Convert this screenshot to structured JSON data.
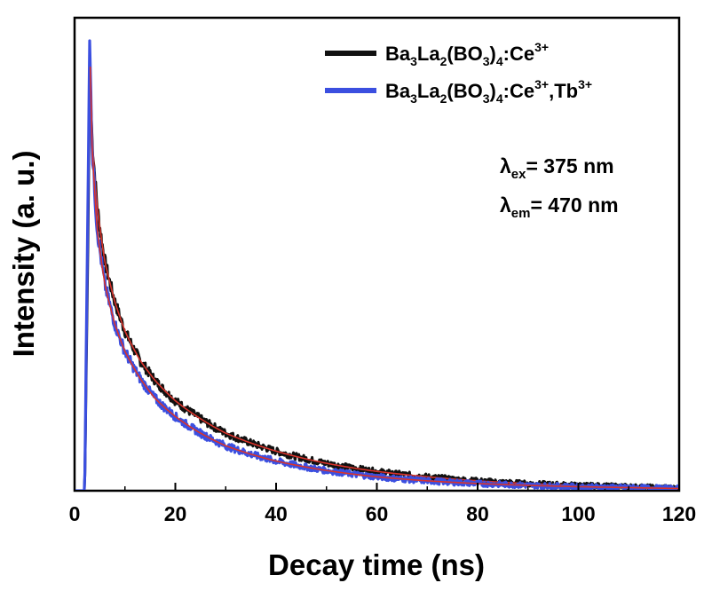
{
  "chart_data": {
    "type": "line",
    "xlabel": "Decay time (ns)",
    "ylabel": "Intensity (a. u.)",
    "xlim": [
      0,
      120
    ],
    "ylim": [
      0,
      1.0
    ],
    "x_ticks": [
      0,
      20,
      40,
      60,
      80,
      100,
      120
    ],
    "x_tick_labels": [
      "0",
      "20",
      "40",
      "60",
      "80",
      "100",
      "120"
    ],
    "y_ticks_shown": false,
    "grid": false,
    "legend_position": "top-right",
    "fit_line_color": "#d9332b",
    "series": [
      {
        "name_parts": {
          "a": "Ba",
          "a_sub": "3",
          "b": "La",
          "b_sub": "2",
          "c": "(BO",
          "c_sub": "3",
          "d": ")",
          "d_sub": "4",
          "e": ":Ce",
          "e_sup": "3+"
        },
        "color": "#111111",
        "x": [
          0,
          2.0,
          2.6,
          3.0,
          3.5,
          4.5,
          6,
          8,
          10,
          13,
          16,
          20,
          25,
          30,
          40,
          50,
          60,
          70,
          80,
          90,
          100,
          110,
          120
        ],
        "values": [
          0,
          0,
          0.5,
          0.92,
          0.78,
          0.63,
          0.51,
          0.42,
          0.355,
          0.29,
          0.245,
          0.2,
          0.16,
          0.128,
          0.088,
          0.061,
          0.043,
          0.031,
          0.022,
          0.016,
          0.012,
          0.009,
          0.006
        ]
      },
      {
        "name_parts": {
          "a": "Ba",
          "a_sub": "3",
          "b": "La",
          "b_sub": "2",
          "c": "(BO",
          "c_sub": "3",
          "d": ")",
          "d_sub": "4",
          "e": ":Ce",
          "e_sup": "3+",
          "f": ",Tb",
          "f_sup": "3+"
        },
        "color": "#3b4fe0",
        "x": [
          0,
          2.0,
          2.6,
          3.0,
          3.5,
          4.5,
          6,
          8,
          10,
          13,
          16,
          20,
          25,
          30,
          40,
          50,
          60,
          70,
          80,
          90,
          100,
          110,
          120
        ],
        "values": [
          0,
          0,
          0.6,
          1.0,
          0.76,
          0.58,
          0.46,
          0.37,
          0.31,
          0.25,
          0.205,
          0.165,
          0.128,
          0.1,
          0.066,
          0.045,
          0.031,
          0.022,
          0.016,
          0.012,
          0.009,
          0.007,
          0.005
        ]
      }
    ]
  },
  "annotations": {
    "ex_symbol": "λ",
    "ex_sub": "ex",
    "ex_value": "= 375 nm",
    "em_symbol": "λ",
    "em_sub": "em",
    "em_value": "= 470 nm"
  }
}
